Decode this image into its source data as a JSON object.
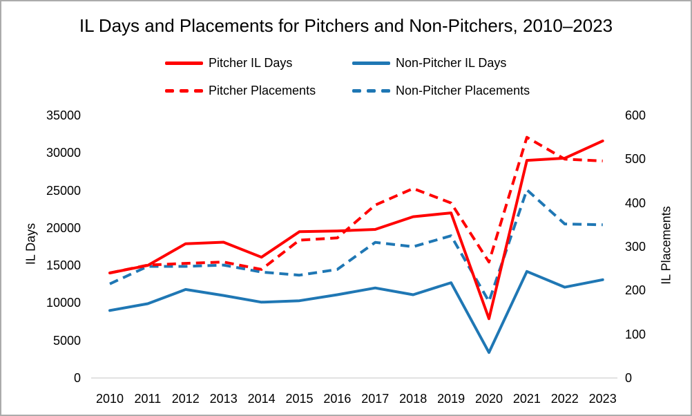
{
  "title": "IL Days and Placements for Pitchers and Non-Pitchers, 2010–2023",
  "colors": {
    "pitcher": "#ff0000",
    "non_pitcher": "#1f77b4",
    "baseline": "#d9d9d9",
    "frame": "#ababab",
    "text": "#000000"
  },
  "legend": {
    "position": "top",
    "items": [
      {
        "label": "Pitcher IL Days",
        "color": "#ff0000",
        "dashed": false
      },
      {
        "label": "Non-Pitcher IL Days",
        "color": "#1f77b4",
        "dashed": false
      },
      {
        "label": "Pitcher Placements",
        "color": "#ff0000",
        "dashed": true
      },
      {
        "label": "Non-Pitcher Placements",
        "color": "#1f77b4",
        "dashed": true
      }
    ]
  },
  "axes": {
    "left": {
      "label": "IL Days",
      "ticks": [
        0,
        5000,
        10000,
        15000,
        20000,
        25000,
        30000,
        35000
      ],
      "max": 35000
    },
    "right": {
      "label": "IL Placements",
      "ticks": [
        0,
        100,
        200,
        300,
        400,
        500,
        600
      ],
      "max": 600
    },
    "x": {
      "ticks": [
        "2010",
        "2011",
        "2012",
        "2013",
        "2014",
        "2015",
        "2016",
        "2017",
        "2018",
        "2019",
        "2020",
        "2021",
        "2022",
        "2023"
      ]
    }
  },
  "chart_data": {
    "type": "line",
    "title": "IL Days and Placements for Pitchers and Non-Pitchers, 2010–2023",
    "x": [
      2010,
      2011,
      2012,
      2013,
      2014,
      2015,
      2016,
      2017,
      2018,
      2019,
      2020,
      2021,
      2022,
      2023
    ],
    "ylabel_left": "IL Days",
    "ylabel_right": "IL Placements",
    "ylim_left": [
      0,
      35000
    ],
    "ylim_right": [
      0,
      600
    ],
    "grid": false,
    "legend_position": "top",
    "series": [
      {
        "name": "Non-Pitcher Placements",
        "axis": "right",
        "style": "dashed",
        "color": "#1f77b4",
        "values": [
          215,
          255,
          255,
          258,
          242,
          235,
          248,
          310,
          300,
          325,
          175,
          430,
          352,
          350
        ]
      },
      {
        "name": "Non-Pitcher IL Days",
        "axis": "left",
        "style": "solid",
        "color": "#1f77b4",
        "values": [
          9000,
          9900,
          11800,
          11000,
          10100,
          10300,
          11100,
          12000,
          11100,
          12700,
          3400,
          14200,
          12100,
          13100
        ]
      },
      {
        "name": "Pitcher Placements",
        "axis": "right",
        "style": "dashed",
        "color": "#ff0000",
        "values": [
          240,
          258,
          262,
          265,
          248,
          315,
          320,
          395,
          433,
          400,
          265,
          550,
          500,
          496
        ]
      },
      {
        "name": "Pitcher IL Days",
        "axis": "left",
        "style": "solid",
        "color": "#ff0000",
        "values": [
          14000,
          15000,
          17900,
          18100,
          16100,
          19500,
          19600,
          19800,
          21500,
          22000,
          7900,
          29000,
          29300,
          31600
        ]
      }
    ]
  }
}
